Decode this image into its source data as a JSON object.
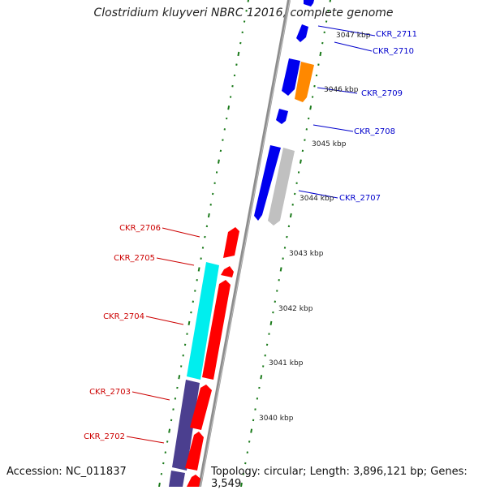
{
  "title": "Clostridium kluyveri NBRC 12016, complete genome",
  "accession": "Accession: NC_011837",
  "summary": "Topology: circular; Length: 3,896,121 bp; Genes: 3,549",
  "colors": {
    "backbone": "#888888",
    "tick": "#1a7a1a",
    "label_plus": "#0000cc",
    "label_minus": "#cc0000",
    "blue": "#0000ee",
    "orange": "#ff8800",
    "grey": "#bbbbbb",
    "red": "#ff0000",
    "cyan": "#00eeee",
    "navy": "#4b3f8f"
  },
  "kbp_labels": [
    "3047 kbp",
    "3046 kbp",
    "3045 kbp",
    "3044 kbp",
    "3043 kbp",
    "3042 kbp",
    "3041 kbp",
    "3040 kbp"
  ],
  "gene_labels_plus": [
    "CKR_2711",
    "CKR_2710",
    "CKR_2709",
    "CKR_2708",
    "CKR_2707"
  ],
  "gene_labels_minus": [
    "CKR_2706",
    "CKR_2705",
    "CKR_2704",
    "CKR_2703",
    "CKR_2702"
  ]
}
